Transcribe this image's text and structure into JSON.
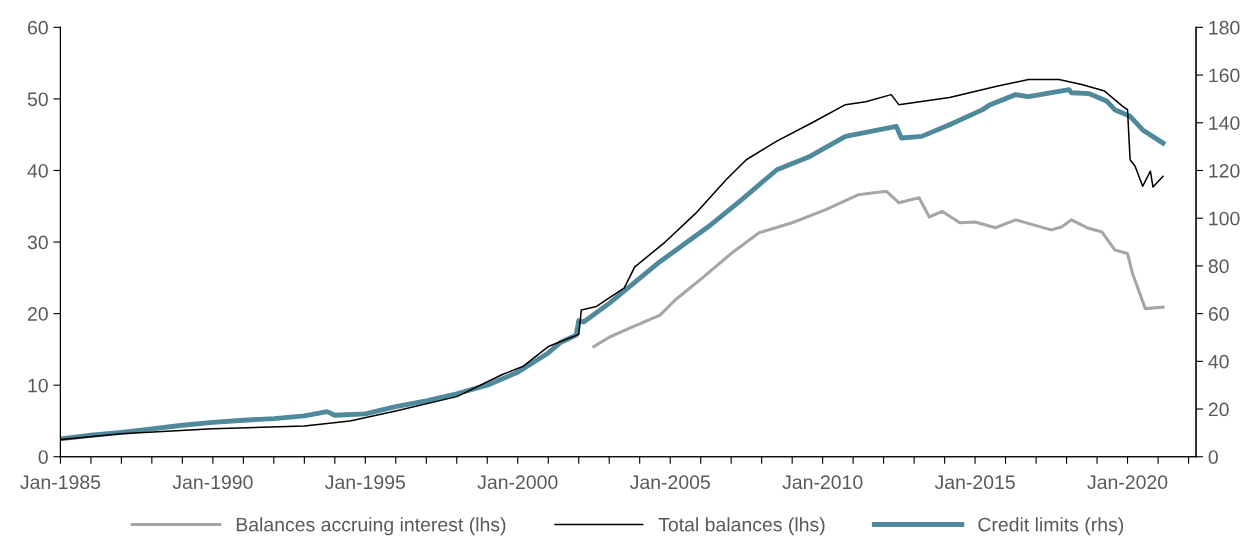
{
  "chart_data": {
    "type": "line",
    "xlim": [
      "1985-01",
      "2022-04"
    ],
    "xticks": [
      {
        "value": "1985-01",
        "label": "Jan-1985"
      },
      {
        "value": "1986-01",
        "label": null
      },
      {
        "value": "1987-01",
        "label": null
      },
      {
        "value": "1988-01",
        "label": null
      },
      {
        "value": "1989-01",
        "label": null
      },
      {
        "value": "1990-01",
        "label": "Jan-1990"
      },
      {
        "value": "1991-01",
        "label": null
      },
      {
        "value": "1992-01",
        "label": null
      },
      {
        "value": "1993-01",
        "label": null
      },
      {
        "value": "1994-01",
        "label": null
      },
      {
        "value": "1995-01",
        "label": "Jan-1995"
      },
      {
        "value": "1996-01",
        "label": null
      },
      {
        "value": "1997-01",
        "label": null
      },
      {
        "value": "1998-01",
        "label": null
      },
      {
        "value": "1999-01",
        "label": null
      },
      {
        "value": "2000-01",
        "label": "Jan-2000"
      },
      {
        "value": "2001-01",
        "label": null
      },
      {
        "value": "2002-01",
        "label": null
      },
      {
        "value": "2003-01",
        "label": null
      },
      {
        "value": "2004-01",
        "label": null
      },
      {
        "value": "2005-01",
        "label": "Jan-2005"
      },
      {
        "value": "2006-01",
        "label": null
      },
      {
        "value": "2007-01",
        "label": null
      },
      {
        "value": "2008-01",
        "label": null
      },
      {
        "value": "2009-01",
        "label": null
      },
      {
        "value": "2010-01",
        "label": "Jan-2010"
      },
      {
        "value": "2011-01",
        "label": null
      },
      {
        "value": "2012-01",
        "label": null
      },
      {
        "value": "2013-01",
        "label": null
      },
      {
        "value": "2014-01",
        "label": null
      },
      {
        "value": "2015-01",
        "label": "Jan-2015"
      },
      {
        "value": "2016-01",
        "label": null
      },
      {
        "value": "2017-01",
        "label": null
      },
      {
        "value": "2018-01",
        "label": null
      },
      {
        "value": "2019-01",
        "label": null
      },
      {
        "value": "2020-01",
        "label": "Jan-2020"
      },
      {
        "value": "2021-01",
        "label": null
      },
      {
        "value": "2022-01",
        "label": null
      }
    ],
    "ylim": [
      0,
      60
    ],
    "yticks": [
      0,
      10,
      20,
      30,
      40,
      50,
      60
    ],
    "y2lim": [
      0,
      180
    ],
    "y2ticks": [
      0,
      20,
      40,
      60,
      80,
      100,
      120,
      140,
      160,
      180
    ],
    "grid": false,
    "legend": "bottom",
    "marker": "none",
    "line_style": "solid",
    "series": [
      {
        "name": "Balances accruing interest (lhs)",
        "color": "#a6a6a6",
        "x": [
          "2002-07",
          "2003-01",
          "2003-10",
          "2004-09",
          "2005-03",
          "2006-02",
          "2007-01",
          "2007-12",
          "2009-01",
          "2010-02",
          "2011-03",
          "2012-02",
          "2012-07",
          "2013-03",
          "2013-07",
          "2013-12",
          "2014-07",
          "2015-01",
          "2015-09",
          "2016-05",
          "2017-07",
          "2017-11",
          "2018-03",
          "2018-09",
          "2019-03",
          "2019-08",
          "2020-01",
          "2020-03",
          "2020-08",
          "2021-03"
        ],
        "values": [
          15.4,
          16.7,
          18.1,
          19.8,
          21.9,
          25.1,
          28.4,
          31.3,
          32.7,
          34.5,
          36.6,
          37.1,
          35.5,
          36.2,
          33.5,
          34.3,
          32.7,
          32.8,
          32.0,
          33.1,
          31.7,
          32.1,
          33.1,
          32.0,
          31.4,
          28.9,
          28.4,
          25.6,
          20.7,
          20.9
        ]
      },
      {
        "name": "Total balances (lhs)",
        "color": "#000000",
        "x": [
          "1985-01",
          "1987-01",
          "1990-01",
          "1993-01",
          "1994-07",
          "1996-01",
          "1998-01",
          "1999-07",
          "2000-03",
          "2001-01",
          "2002-01",
          "2002-02",
          "2002-08",
          "2003-07",
          "2003-11",
          "2004-11",
          "2005-11",
          "2006-11",
          "2007-07",
          "2008-07",
          "2009-09",
          "2010-10",
          "2011-06",
          "2012-04",
          "2012-07",
          "2014-03",
          "2015-10",
          "2016-10",
          "2017-10",
          "2018-07",
          "2019-04",
          "2019-11",
          "2020-01",
          "2020-02",
          "2020-04",
          "2020-07",
          "2020-10",
          "2020-11",
          "2021-03"
        ],
        "values": [
          2.4,
          3.2,
          3.9,
          4.3,
          5.0,
          6.4,
          8.4,
          11.5,
          12.6,
          15.4,
          17.1,
          20.5,
          21.0,
          23.6,
          26.5,
          30.0,
          34.0,
          38.7,
          41.5,
          44.1,
          46.7,
          49.2,
          49.6,
          50.6,
          49.2,
          50.2,
          51.8,
          52.7,
          52.7,
          52.0,
          51.1,
          49.0,
          48.5,
          41.5,
          40.6,
          37.8,
          39.9,
          37.7,
          39.2
        ]
      },
      {
        "name": "Credit limits (rhs)",
        "color": "#4e8a9b",
        "axis": "y2",
        "x": [
          "1985-01",
          "1986-01",
          "1987-01",
          "1988-01",
          "1989-01",
          "1990-01",
          "1991-01",
          "1992-01",
          "1993-01",
          "1993-10",
          "1994-01",
          "1995-01",
          "1996-01",
          "1997-01",
          "1998-01",
          "1999-01",
          "2000-01",
          "2001-01",
          "2001-06",
          "2001-12",
          "2002-01",
          "2002-03",
          "2003-01",
          "2004-08",
          "2006-04",
          "2007-05",
          "2008-07",
          "2009-08",
          "2010-10",
          "2012-06",
          "2012-08",
          "2013-04",
          "2014-03",
          "2015-04",
          "2015-07",
          "2016-05",
          "2016-10",
          "2018-02",
          "2018-03",
          "2018-10",
          "2019-05",
          "2019-08",
          "2020-02",
          "2020-07",
          "2021-03"
        ],
        "values": [
          7.5,
          9,
          10.2,
          11.7,
          13.2,
          14.4,
          15.3,
          16,
          17.1,
          18.9,
          17.4,
          18,
          21,
          23.4,
          26.4,
          30,
          35.4,
          43.5,
          48,
          51,
          57,
          56.5,
          64.3,
          81,
          96.4,
          107.6,
          120.3,
          125.9,
          134.3,
          138.5,
          133.6,
          134.3,
          139.2,
          145.5,
          147.6,
          151.8,
          151,
          153.9,
          152.6,
          152.2,
          149,
          145.5,
          142.7,
          137,
          131.5
        ]
      }
    ]
  }
}
